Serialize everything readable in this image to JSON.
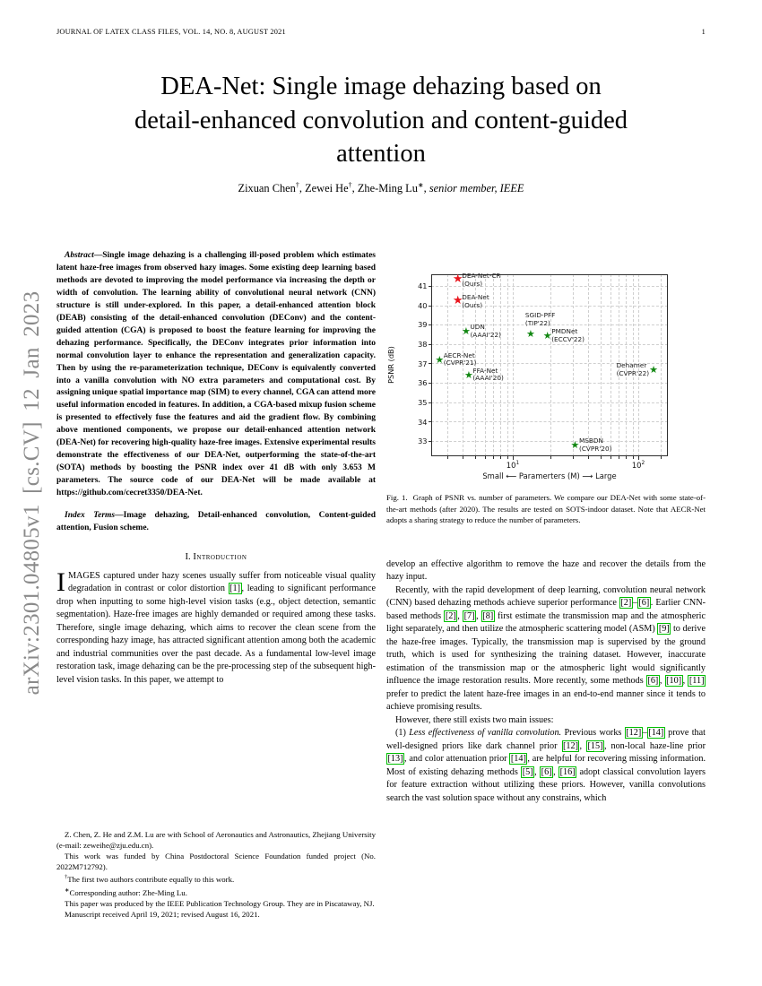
{
  "header": {
    "journal": "JOURNAL OF LATEX CLASS FILES, VOL. 14, NO. 8, AUGUST 2021",
    "page_number": "1"
  },
  "arxiv_banner": {
    "text": "arXiv:2301.04805v1 [cs.CV] 12 Jan 2023",
    "color": "#8a8a8a"
  },
  "title": {
    "text": "DEA-Net: Single image dehazing based on\ndetail-enhanced convolution and content-guided\nattention"
  },
  "authors": {
    "list": [
      {
        "name": "Zixuan Chen",
        "mark": "†"
      },
      {
        "name": "Zewei He",
        "mark": "†"
      },
      {
        "name": "Zhe-Ming Lu",
        "mark": "∗"
      }
    ],
    "membership": "senior member, IEEE"
  },
  "abstract": {
    "label": "Abstract",
    "text": "—Single image dehazing is a challenging ill-posed problem which estimates latent haze-free images from observed hazy images. Some existing deep learning based methods are devoted to improving the model performance via increasing the depth or width of convolution. The learning ability of convolutional neural network (CNN) structure is still under-explored. In this paper, a detail-enhanced attention block (DEAB) consisting of the detail-enhanced convolution (DEConv) and the content-guided attention (CGA) is proposed to boost the feature learning for improving the dehazing performance. Specifically, the DEConv integrates prior information into normal convolution layer to enhance the representation and generalization capacity. Then by using the re-parameterization technique, DEConv is equivalently converted into a vanilla convolution with NO extra parameters and computational cost. By assigning unique spatial importance map (SIM) to every channel, CGA can attend more useful information encoded in features. In addition, a CGA-based mixup fusion scheme is presented to effectively fuse the features and aid the gradient flow. By combining above mentioned components, we propose our detail-enhanced attention network (DEA-Net) for recovering high-quality haze-free images. Extensive experimental results demonstrate the effectiveness of our DEA-Net, outperforming the state-of-the-art (SOTA) methods by boosting the PSNR index over 41 dB with only 3.653 M parameters. The source code of our DEA-Net will be made available at https://github.com/cecret3350/DEA-Net."
  },
  "index_terms": {
    "label": "Index Terms",
    "text": "—Image dehazing, Detail-enhanced convolution, Content-guided attention, Fusion scheme."
  },
  "section1": {
    "number": "I.",
    "title": "Introduction"
  },
  "intro": {
    "dropcap": "I",
    "rest": "MAGES captured under hazy scenes usually suffer from noticeable visual quality degradation in contrast or color distortion [1], leading to significant performance drop when inputting to some high-level vision tasks (e.g., object detection, semantic segmentation). Haze-free images are highly demanded or required among these tasks. Therefore, single image dehazing, which aims to recover the clean scene from the corresponding hazy image, has attracted significant attention among both the academic and industrial communities over the past decade. As a fundamental low-level image restoration task, image dehazing can be the pre-processing step of the subsequent high-level vision tasks. In this paper, we attempt to"
  },
  "footnotes": {
    "lines": [
      "Z. Chen, Z. He and Z.M. Lu are with School of Aeronautics and Astronautics, Zhejiang University (e-mail: zeweihe@zju.edu.cn).",
      "This work was funded by China Postdoctoral Science Foundation funded project (No. 2022M712792).",
      "†The first two authors contribute equally to this work.",
      "∗Corresponding author: Zhe-Ming Lu.",
      "This paper was produced by the IEEE Publication Technology Group. They are in Piscataway, NJ.",
      "Manuscript received April 19, 2021; revised August 16, 2021."
    ]
  },
  "figure": {
    "caption_label": "Fig. 1.",
    "caption_text": "Graph of PSNR vs. number of parameters. We compare our DEA-Net with some state-of-the-art methods (after 2020). The results are tested on SOTS-indoor dataset. Note that AECR-Net adopts a sharing strategy to reduce the number of parameters."
  },
  "right_column": {
    "paragraphs": [
      {
        "indent": false,
        "text": "develop an effective algorithm to remove the haze and recover the details from the hazy input."
      },
      {
        "indent": true,
        "text": "Recently, with the rapid development of deep learning, convolution neural network (CNN) based dehazing methods achieve superior performance [2]–[6]. Earlier CNN-based methods [2], [7], [8] first estimate the transmission map and the atmospheric light separately, and then utilize the atmospheric scattering model (ASM) [9] to derive the haze-free images. Typically, the transmission map is supervised by the ground truth, which is used for synthesizing the training dataset. However, inaccurate estimation of the transmission map or the atmospheric light would significantly influence the image restoration results. More recently, some methods [6], [10], [11] prefer to predict the latent haze-free images in an end-to-end manner since it tends to achieve promising results."
      },
      {
        "indent": true,
        "text": "However, there still exists two main issues:"
      },
      {
        "indent": true,
        "text": "(1) ~Less effectiveness of vanilla convolution.~ Previous works [12]–[14] prove that well-designed priors like dark channel prior [12], [15], non-local haze-line prior [13], and color attenuation prior [14], are helpful for recovering missing information. Most of existing dehazing methods [5], [6], [16] adopt classical convolution layers for feature extraction without utilizing these priors. However, vanilla convolutions search the vast solution space without any constrains, which"
      }
    ]
  },
  "chart_data": {
    "type": "scatter",
    "xscale": "log",
    "xlabel": "Small ⟵  Paramerters (M)  ⟶ Large",
    "ylabel": "PSNR (dB)",
    "xlim": [
      2.24,
      172
    ],
    "ylim": [
      32.21,
      41.6
    ],
    "grid": "dashed-both",
    "legend": "none",
    "marker": "star",
    "colors": {
      "ours": "#e9151d",
      "others": "#128712"
    },
    "x_major_ticks": [
      {
        "value": 10,
        "base": "10",
        "exp": "1"
      },
      {
        "value": 100,
        "base": "10",
        "exp": "2"
      }
    ],
    "x_grid_values": [
      3,
      4,
      5,
      6,
      7,
      8,
      9,
      10,
      20,
      30,
      40,
      50,
      60,
      70,
      80,
      90,
      100,
      150
    ],
    "y_ticks": [
      33,
      34,
      35,
      36,
      37,
      38,
      39,
      40,
      41
    ],
    "points": [
      {
        "name": "DEA-Net-CR",
        "venue": "(Ours)",
        "params_M": 3.653,
        "psnr_dB": 41.31,
        "group": "ours",
        "label_side": "right",
        "dy": 1
      },
      {
        "name": "DEA-Net",
        "venue": "(Ours)",
        "params_M": 3.653,
        "psnr_dB": 40.2,
        "group": "ours",
        "label_side": "right",
        "dy": 1
      },
      {
        "name": "UDN",
        "venue": "(AAAI'22)",
        "params_M": 4.25,
        "psnr_dB": 38.62,
        "group": "others",
        "label_side": "right"
      },
      {
        "name": "SGID-PFF",
        "venue": "(TIP'22)",
        "params_M": 13.87,
        "psnr_dB": 38.52,
        "group": "others",
        "label_side": "above"
      },
      {
        "name": "PMDNet",
        "venue": "(ECCV'22)",
        "params_M": 18.9,
        "psnr_dB": 38.41,
        "group": "others",
        "label_side": "right"
      },
      {
        "name": "AECR-Net",
        "venue": "(CVPR'21)",
        "params_M": 2.61,
        "psnr_dB": 37.17,
        "group": "others",
        "label_side": "right"
      },
      {
        "name": "FFA-Net",
        "venue": "(AAAI'20)",
        "params_M": 4.46,
        "psnr_dB": 36.39,
        "group": "others",
        "label_side": "right"
      },
      {
        "name": "Dehamer",
        "venue": "(CVPR'22)",
        "params_M": 132.45,
        "psnr_dB": 36.63,
        "group": "others",
        "label_side": "left"
      },
      {
        "name": "MSBDN",
        "venue": "(CVPR'20)",
        "params_M": 31.35,
        "psnr_dB": 32.77,
        "group": "others",
        "label_side": "right"
      }
    ]
  }
}
